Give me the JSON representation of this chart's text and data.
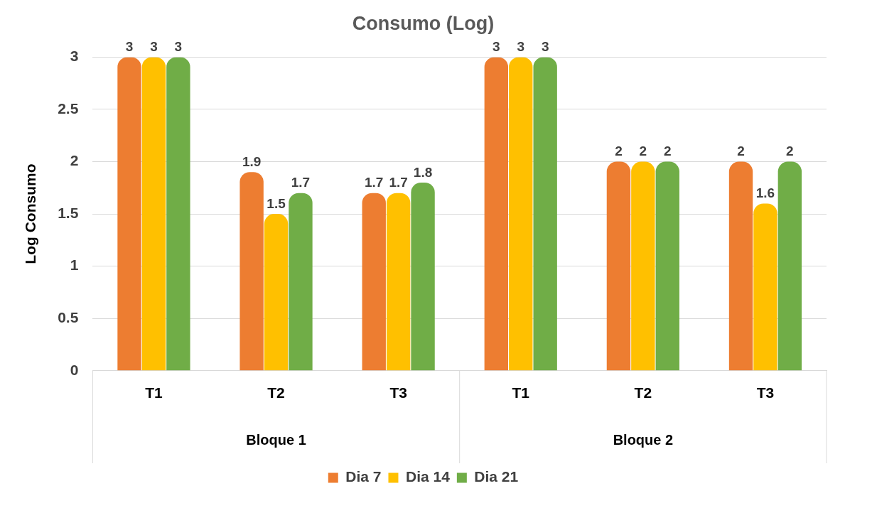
{
  "chart_data": {
    "type": "bar",
    "title": "Consumo (Log)",
    "ylabel": "Log Consumo",
    "categories": [
      "T1",
      "T2",
      "T3",
      "T1",
      "T2",
      "T3"
    ],
    "annotations": [
      "Bloque 1",
      "Bloque 2"
    ],
    "series": [
      {
        "name": "Dia 7",
        "color": "#ed7d31",
        "values": [
          3,
          1.9,
          1.7,
          3,
          2,
          2
        ]
      },
      {
        "name": "Dia 14",
        "color": "#ffc000",
        "values": [
          3,
          1.5,
          1.7,
          3,
          2,
          1.6
        ]
      },
      {
        "name": "Dia 21",
        "color": "#70ad47",
        "values": [
          3,
          1.7,
          1.8,
          3,
          2,
          2
        ]
      }
    ],
    "ylim": [
      0,
      3
    ],
    "yticks": [
      0,
      0.5,
      1,
      1.5,
      2,
      2.5,
      3
    ],
    "grid": "y",
    "legend": "bottom",
    "data_labels": true
  }
}
